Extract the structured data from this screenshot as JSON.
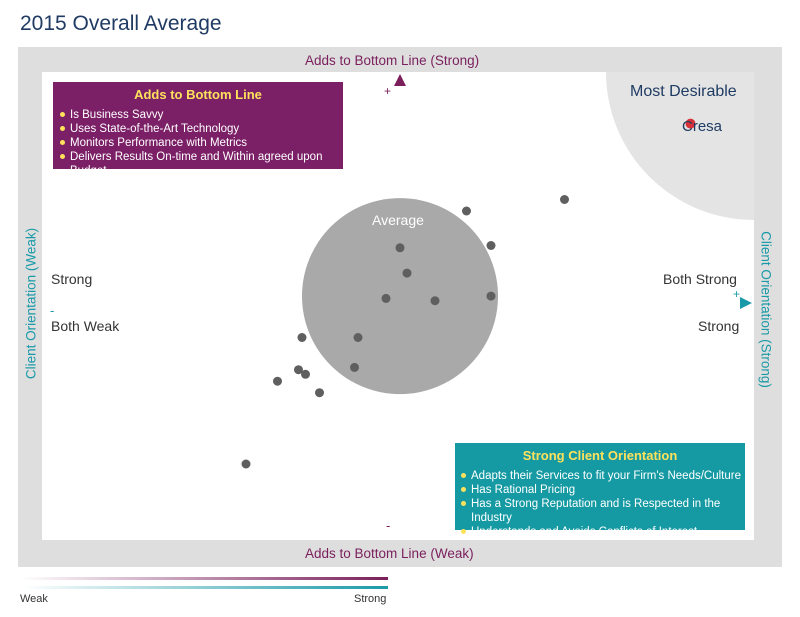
{
  "page_title": "2015 Overall Average",
  "axes": {
    "top_title": "Adds to Bottom Line (Strong)",
    "bottom_title": "Adds to Bottom Line (Weak)",
    "left_title": "Client Orientation (Weak)",
    "right_title": "Client Orientation (Strong)",
    "plus_top": "+",
    "minus_bottom": "-",
    "minus_left": "-",
    "plus_right": "+"
  },
  "quadrant_labels": {
    "left_upper": "Strong",
    "left_lower": "Both Weak",
    "right_upper": "Both Strong",
    "right_lower": "Strong"
  },
  "zones": {
    "average": "Average",
    "most_desirable": "Most Desirable",
    "highlight_label": "Cresa"
  },
  "box_bottom_line": {
    "title": "Adds to Bottom Line",
    "items": [
      "Is Business Savvy",
      "Uses State-of-the-Art Technology",
      "Monitors Performance with Metrics",
      "Delivers Results On-time and Within  agreed upon Budget"
    ]
  },
  "box_client": {
    "title": "Strong Client Orientation",
    "items": [
      "Adapts their Services to fit your Firm's Needs/Culture",
      "Has Rational Pricing",
      "Has a Strong Reputation and is Respected in the Industry",
      "Understands and Avoids Conflicts of Interest"
    ]
  },
  "legend": {
    "left": "Weak",
    "right": "Strong"
  },
  "colors": {
    "bottom_line_axis": "#7a1f5c",
    "client_axis": "#1a9aa8",
    "box_bottom_line_bg": "#7b1f66",
    "box_client_bg": "#159aa3",
    "average_circle": "#a9a9a9",
    "most_desirable_zone": "#e4e4e4",
    "points": "#5f5f5f",
    "highlight": "#d6323a",
    "accent_text": "#ffe25c"
  },
  "chart_data": {
    "type": "scatter",
    "title": "2015 Overall Average",
    "xlabel": "Client Orientation (Weak → Strong)",
    "ylabel": "Adds to Bottom Line (Weak → Strong)",
    "xlim": [
      -1,
      1
    ],
    "ylim": [
      -1,
      1
    ],
    "average_zone": {
      "center": [
        0,
        0.03
      ],
      "radius": 0.28
    },
    "most_desirable_zone": {
      "corner": "top-right"
    },
    "points": [
      {
        "x": 0.47,
        "y": 0.45
      },
      {
        "x": 0.19,
        "y": 0.4
      },
      {
        "x": 0.26,
        "y": 0.25
      },
      {
        "x": 0.0,
        "y": 0.24
      },
      {
        "x": 0.02,
        "y": 0.13
      },
      {
        "x": -0.04,
        "y": 0.02
      },
      {
        "x": 0.1,
        "y": 0.01
      },
      {
        "x": 0.26,
        "y": 0.03
      },
      {
        "x": -0.28,
        "y": -0.15
      },
      {
        "x": -0.12,
        "y": -0.15
      },
      {
        "x": -0.13,
        "y": -0.28
      },
      {
        "x": -0.29,
        "y": -0.29
      },
      {
        "x": -0.27,
        "y": -0.31
      },
      {
        "x": -0.35,
        "y": -0.34
      },
      {
        "x": -0.23,
        "y": -0.39
      },
      {
        "x": -0.44,
        "y": -0.7
      }
    ],
    "highlight": {
      "name": "Cresa",
      "x": 0.83,
      "y": 0.78
    }
  }
}
